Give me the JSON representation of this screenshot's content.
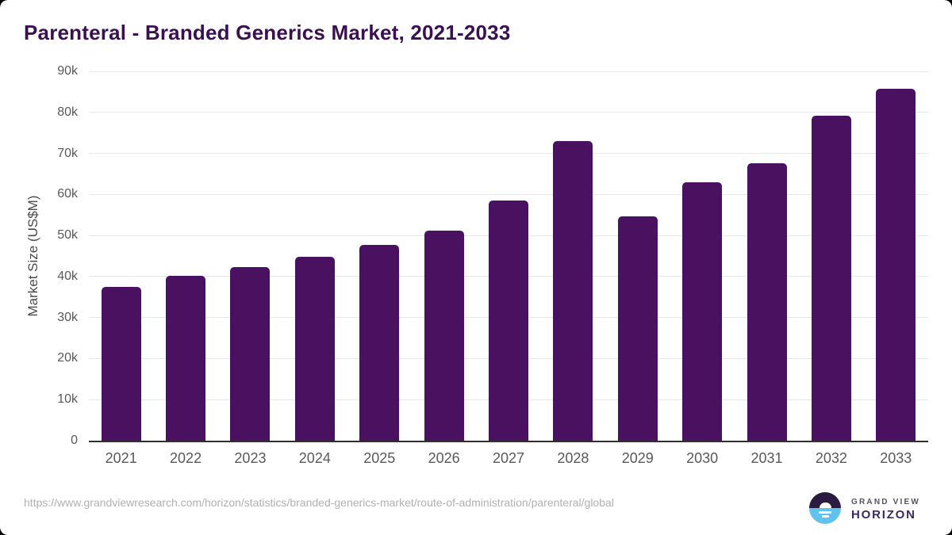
{
  "chart": {
    "title": "Parenteral - Branded Generics Market, 2021-2033",
    "ylabel": "Market Size (US$M)"
  },
  "chart_data": {
    "type": "bar",
    "title": "Parenteral - Branded Generics Market, 2021-2033",
    "xlabel": "",
    "ylabel": "Market Size (US$M)",
    "categories": [
      "2021",
      "2022",
      "2023",
      "2024",
      "2025",
      "2026",
      "2027",
      "2028",
      "2029",
      "2030",
      "2031",
      "2032",
      "2033"
    ],
    "values": [
      37500,
      40100,
      42400,
      44900,
      47800,
      51200,
      58600,
      73100,
      54600,
      63000,
      67700,
      79100,
      85800
    ],
    "ylim": [
      0,
      90000
    ],
    "ytick_step": 10000,
    "ytick_labels": [
      "0",
      "10k",
      "20k",
      "30k",
      "40k",
      "50k",
      "60k",
      "70k",
      "80k",
      "90k"
    ],
    "grid": true,
    "legend": false,
    "bar_color": "#4a1161"
  },
  "footer": {
    "source_url": "https://www.grandviewresearch.com/horizon/statistics/branded-generics-market/route-of-administration/parenteral/global",
    "logo": {
      "top_text": "GRAND VIEW",
      "bottom_text": "HORIZON"
    }
  },
  "colors": {
    "bar": "#4a1161",
    "title_text": "#3a1053",
    "axis_text": "#595959",
    "y_axis_title_text": "#4a4a4a",
    "gridline": "#e7e7e7",
    "axis_line": "#2f2f2f",
    "source_text": "#b1b1b1",
    "logo_dark": "#2b1b40",
    "logo_blue": "#5fc3ee",
    "logo_top_text": "#55555f",
    "logo_bottom_text": "#3a2a5f"
  }
}
